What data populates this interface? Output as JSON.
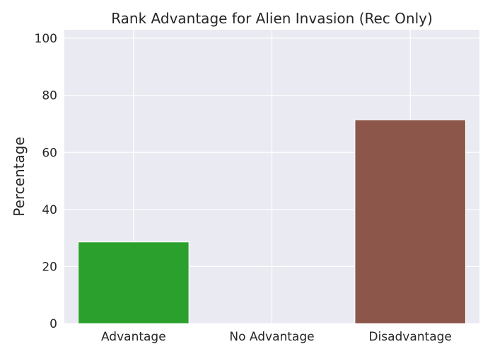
{
  "chart_data": {
    "type": "bar",
    "title": "Rank Advantage for Alien Invasion (Rec Only)",
    "xlabel": "",
    "ylabel": "Percentage",
    "categories": [
      "Advantage",
      "No Advantage",
      "Disadvantage"
    ],
    "values": [
      28.6,
      0,
      71.4
    ],
    "colors": [
      "#2ca02c",
      "#1f77b4",
      "#8c564b"
    ],
    "ylim": [
      0,
      103
    ],
    "yticks": [
      0,
      20,
      40,
      60,
      80,
      100
    ],
    "grid": true,
    "background": "#eaeaf2",
    "grid_color": "#ffffff"
  }
}
